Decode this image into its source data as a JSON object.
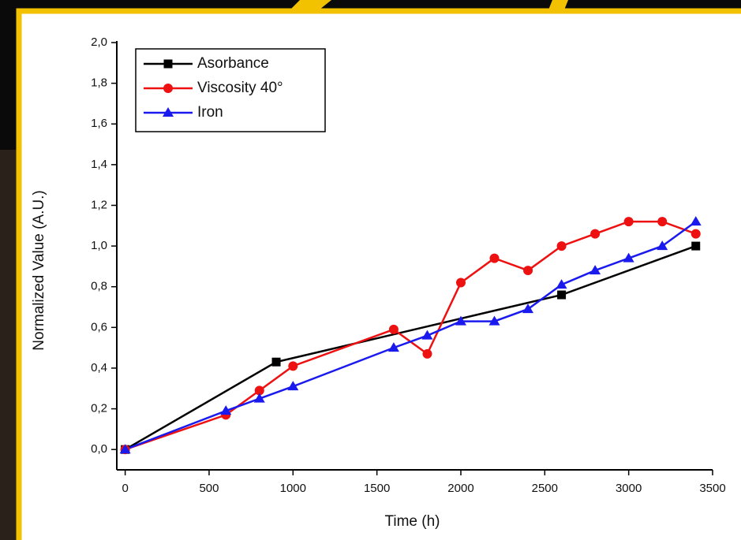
{
  "chart_data": {
    "type": "line",
    "xlabel": "Time (h)",
    "ylabel": "Normalized Value (A.U.)",
    "xlim": [
      -50,
      3500
    ],
    "ylim": [
      -0.1,
      2.0
    ],
    "xticks": [
      0,
      500,
      1000,
      1500,
      2000,
      2500,
      3000,
      3500
    ],
    "yticks": [
      {
        "value": 0,
        "label": "0,0"
      },
      {
        "value": 0.2,
        "label": "0,2"
      },
      {
        "value": 0.4,
        "label": "0,4"
      },
      {
        "value": 0.6,
        "label": "0,6"
      },
      {
        "value": 0.8,
        "label": "0,8"
      },
      {
        "value": 1.0,
        "label": "1,0"
      },
      {
        "value": 1.2,
        "label": "1,2"
      },
      {
        "value": 1.4,
        "label": "1,4"
      },
      {
        "value": 1.6,
        "label": "1,6"
      },
      {
        "value": 1.8,
        "label": "1,8"
      },
      {
        "value": 2.0,
        "label": "2,0"
      }
    ],
    "legend": "upper left",
    "series": [
      {
        "name": "Asorbance",
        "color": "#000000",
        "marker": "square",
        "x": [
          0,
          900,
          2600,
          3400
        ],
        "values": [
          0,
          0.43,
          0.76,
          1.0
        ]
      },
      {
        "name": "Viscosity 40°",
        "color": "#ee1111",
        "marker": "circle",
        "x": [
          0,
          600,
          800,
          1000,
          1600,
          1800,
          2000,
          2200,
          2400,
          2600,
          2800,
          3000,
          3200,
          3400
        ],
        "values": [
          0,
          0.17,
          0.29,
          0.41,
          0.59,
          0.47,
          0.82,
          0.94,
          0.88,
          1.0,
          1.06,
          1.12,
          1.12,
          1.06
        ]
      },
      {
        "name": "Iron",
        "color": "#1a1aee",
        "marker": "triangle",
        "x": [
          0,
          600,
          800,
          1000,
          1600,
          1800,
          2000,
          2200,
          2400,
          2600,
          2800,
          3000,
          3200,
          3400
        ],
        "values": [
          0,
          0.19,
          0.25,
          0.31,
          0.5,
          0.56,
          0.63,
          0.63,
          0.69,
          0.81,
          0.88,
          0.94,
          1.0,
          1.12
        ]
      }
    ]
  }
}
